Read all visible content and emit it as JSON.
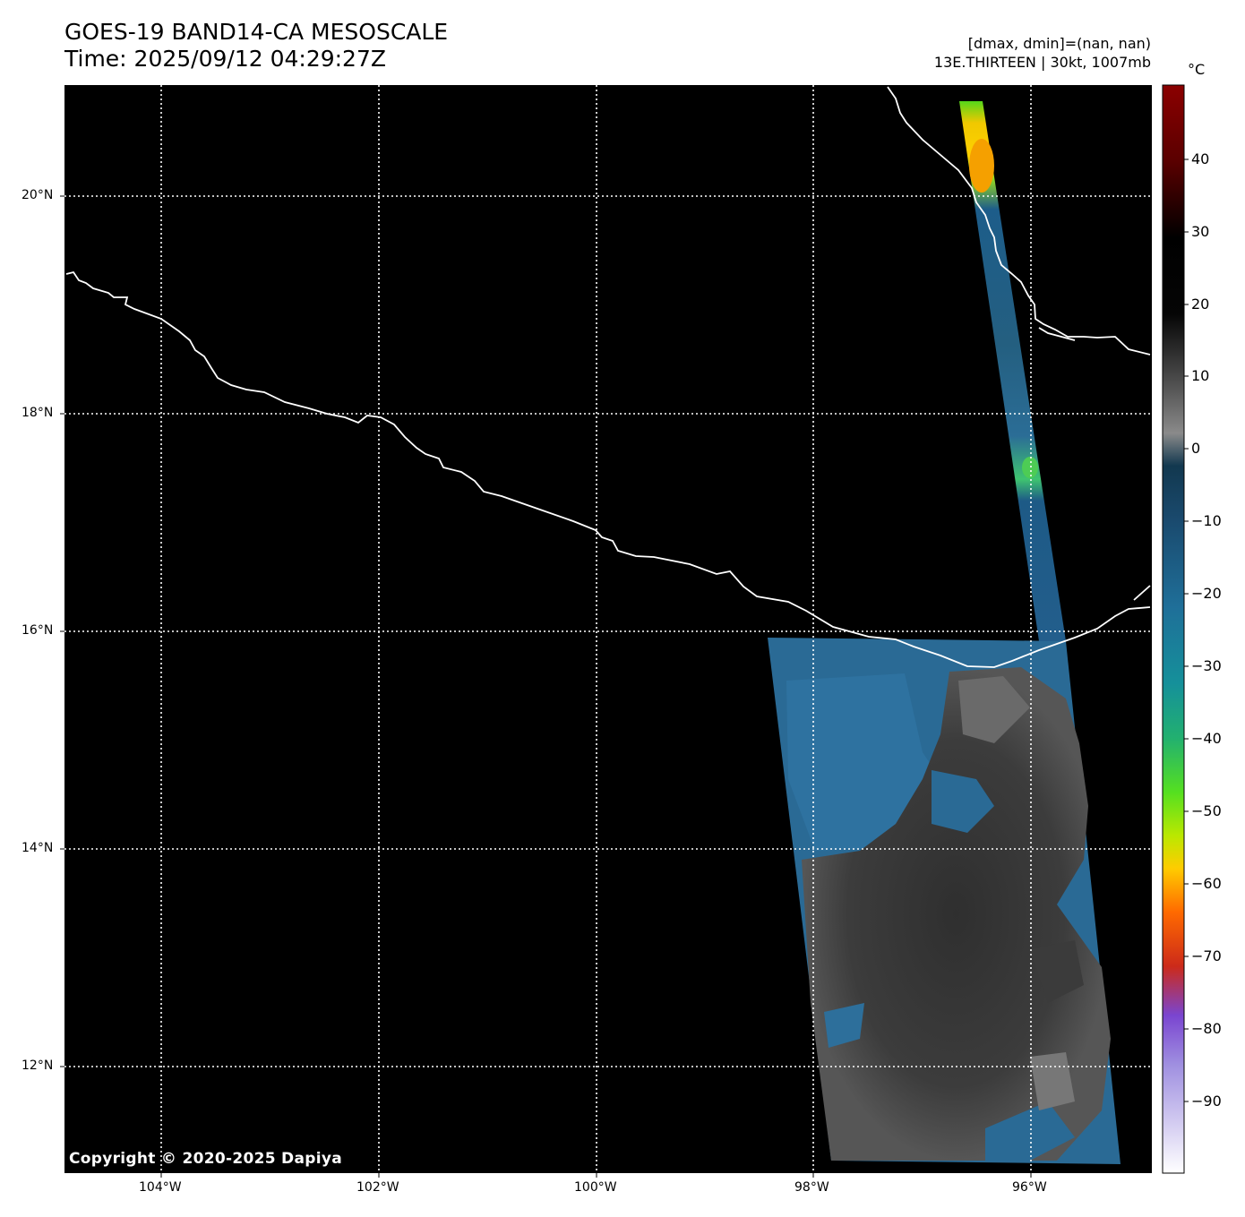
{
  "header": {
    "title_line1": "GOES-19 BAND14-CA MESOSCALE",
    "title_line2": "Time: 2025/09/12 04:29:27Z",
    "info_line1": "[dmax, dmin]=(nan, nan)",
    "info_line2": "13E.THIRTEEN | 30kt, 1007mb"
  },
  "map": {
    "x_ticks": [
      "104°W",
      "102°W",
      "100°W",
      "98°W",
      "96°W"
    ],
    "y_ticks": [
      "20°N",
      "18°N",
      "16°N",
      "14°N",
      "12°N"
    ],
    "lon_range": [
      -104.9,
      -95.0
    ],
    "lat_range": [
      11.0,
      21.0
    ],
    "background_color": "#000000",
    "coastline_color": "#ffffff",
    "gridline_color": "#ffffff",
    "copyright": "Copyright © 2020-2025 Dapiya"
  },
  "colorbar": {
    "unit": "°C",
    "labels": [
      "40",
      "30",
      "20",
      "10",
      "0",
      "−10",
      "−20",
      "−30",
      "−40",
      "−50",
      "−60",
      "−70",
      "−80",
      "−90"
    ],
    "range": [
      -100,
      50
    ]
  }
}
